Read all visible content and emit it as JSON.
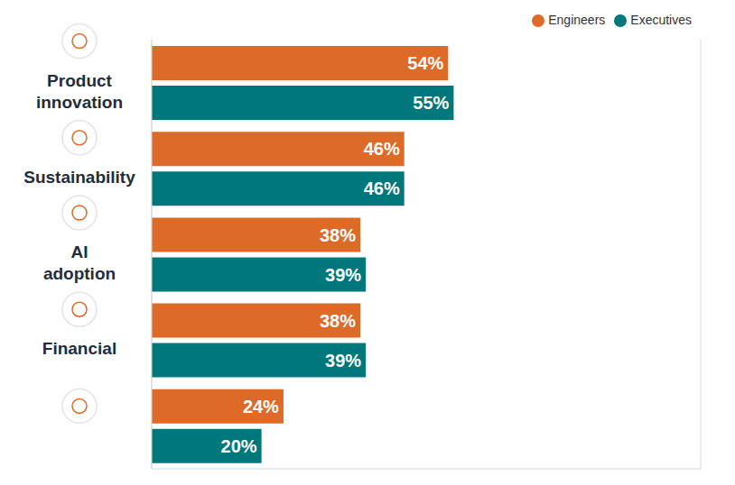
{
  "chart_data": {
    "type": "bar",
    "orientation": "horizontal",
    "categories": [
      "Product innovation",
      "Sustainability",
      "AI adoption",
      "Financial",
      null
    ],
    "series": [
      {
        "name": "Engineers",
        "color": "#dd6a27",
        "values": [
          54,
          46,
          38,
          38,
          24
        ],
        "value_labels": [
          "54%",
          "46%",
          "38%",
          "38%",
          "24%"
        ]
      },
      {
        "name": "Executives",
        "color": "#00777a",
        "values": [
          55,
          46,
          39,
          39,
          20
        ],
        "value_labels": [
          "55%",
          "46%",
          "39%",
          "39%",
          "20%"
        ]
      }
    ],
    "xlim": [
      0,
      100
    ],
    "xticks": [
      0,
      25,
      50,
      75,
      100
    ],
    "grid": true,
    "legend": "top-right",
    "data_labels": true,
    "tick_labels": "y"
  }
}
